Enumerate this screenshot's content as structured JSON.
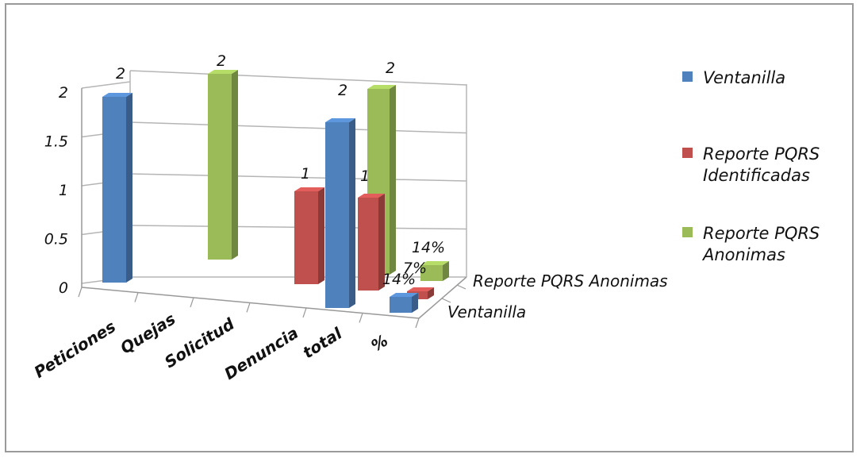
{
  "chart_data": {
    "type": "bar",
    "title": "",
    "categories": [
      "Peticiones",
      "Quejas",
      "Solicitud",
      "Denuncia",
      "total",
      "%"
    ],
    "depth_labels": [
      "Reporte PQRS Anonimas",
      "Ventanilla"
    ],
    "series": [
      {
        "name": "Ventanilla",
        "values": [
          2,
          null,
          null,
          null,
          2,
          0.14
        ],
        "labels": [
          "2",
          "",
          "",
          "",
          "2",
          "14%"
        ]
      },
      {
        "name": "Reporte PQRS Identificadas",
        "values": [
          null,
          null,
          null,
          1,
          1,
          0.07
        ],
        "labels": [
          "",
          "",
          "",
          "1",
          "1",
          "7%"
        ]
      },
      {
        "name": "Reporte PQRS Anonimas",
        "values": [
          null,
          null,
          2,
          null,
          2,
          0.14
        ],
        "labels": [
          "",
          "",
          "2",
          "",
          "2",
          "14%"
        ]
      }
    ],
    "yticks": [
      "0",
      "0.5",
      "1",
      "1.5",
      "2"
    ],
    "ylim": [
      0,
      2
    ],
    "grid": true,
    "legend_position": "right",
    "colors": {
      "Ventanilla": "#4f81bd",
      "Reporte PQRS Identificadas": "#c0504d",
      "Reporte PQRS Anonimas": "#9bbb59"
    }
  }
}
